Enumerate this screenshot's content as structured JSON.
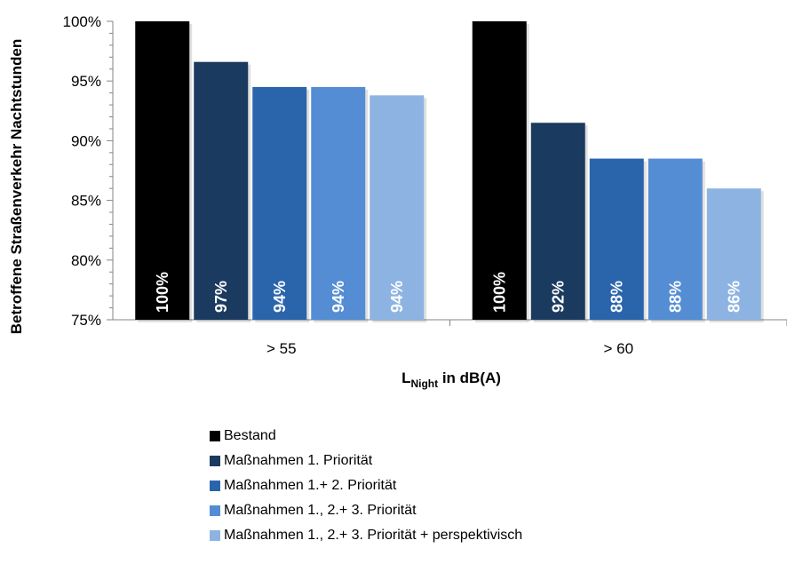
{
  "chart_data": {
    "type": "bar",
    "title": "",
    "xlabel_main": "L",
    "xlabel_sub": "Night",
    "xlabel_rest": " in dB(A)",
    "ylabel": "Betroffene Straßenverkehr Nachtstunden",
    "ylim": [
      75,
      100
    ],
    "yticks": [
      75,
      80,
      85,
      90,
      95,
      100
    ],
    "ytick_labels": [
      "75%",
      "80%",
      "85%",
      "90%",
      "95%",
      "100%"
    ],
    "categories": [
      "> 55",
      "> 60"
    ],
    "series": [
      {
        "name": "Bestand",
        "color": "#000000",
        "values": [
          100,
          100
        ],
        "labels": [
          "100%",
          "100%"
        ]
      },
      {
        "name": "Maßnahmen 1. Priorität",
        "color": "#1B3A5F",
        "values": [
          96.6,
          91.5
        ],
        "labels": [
          "97%",
          "92%"
        ]
      },
      {
        "name": "Maßnahmen 1.+ 2. Priorität",
        "color": "#2A65AC",
        "values": [
          94.5,
          88.5
        ],
        "labels": [
          "94%",
          "88%"
        ]
      },
      {
        "name": "Maßnahmen 1., 2.+ 3. Priorität",
        "color": "#548DD4",
        "values": [
          94.5,
          88.5
        ],
        "labels": [
          "94%",
          "88%"
        ]
      },
      {
        "name": "Maßnahmen 1., 2.+ 3. Priorität + perspektivisch",
        "color": "#8DB3E2",
        "values": [
          93.8,
          86.0
        ],
        "labels": [
          "94%",
          "86%"
        ]
      }
    ],
    "grid": false,
    "legend_position": "bottom"
  }
}
